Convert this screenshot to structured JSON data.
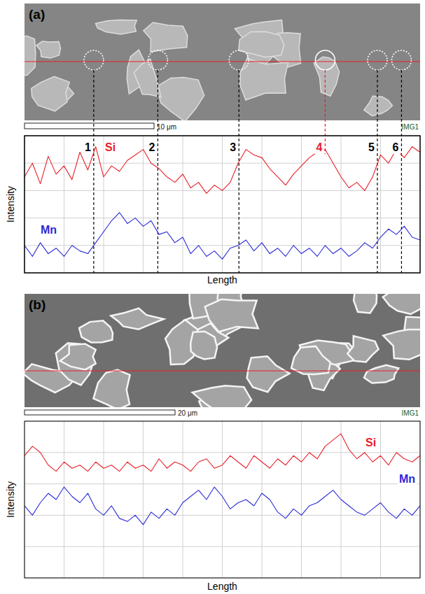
{
  "chart_data": [
    {
      "type": "line",
      "title": "(a)",
      "scale_bar": "10 μm",
      "image_tag": "IMG1",
      "x_label": "Length",
      "y_label": "Intensity",
      "xlim": [
        0,
        100
      ],
      "ylim": [
        0,
        100
      ],
      "xticks": [
        0,
        10,
        20,
        30,
        40,
        50,
        60,
        70,
        80,
        90,
        100
      ],
      "yticks": [
        0,
        20,
        40,
        60,
        80,
        100
      ],
      "grid": true,
      "tick_labels": false,
      "x": [
        0,
        2,
        4,
        6,
        8,
        10,
        12,
        14,
        16,
        18,
        20,
        22,
        24,
        26,
        28,
        30,
        32,
        34,
        36,
        38,
        40,
        42,
        44,
        46,
        48,
        50,
        52,
        54,
        56,
        58,
        60,
        62,
        64,
        66,
        68,
        70,
        72,
        74,
        76,
        78,
        80,
        82,
        84,
        86,
        88,
        90,
        92,
        94,
        96,
        98,
        100
      ],
      "series": [
        {
          "name": "Si",
          "color": "#e8202a",
          "values": [
            70,
            80,
            65,
            85,
            72,
            78,
            68,
            88,
            75,
            92,
            70,
            78,
            74,
            82,
            86,
            90,
            80,
            76,
            70,
            66,
            72,
            62,
            66,
            58,
            64,
            60,
            66,
            80,
            90,
            86,
            84,
            76,
            70,
            64,
            72,
            78,
            84,
            88,
            90,
            80,
            70,
            62,
            66,
            60,
            70,
            86,
            80,
            90,
            84,
            92,
            88
          ]
        },
        {
          "name": "Mn",
          "color": "#2a2ad8",
          "values": [
            20,
            12,
            22,
            14,
            18,
            12,
            20,
            16,
            14,
            22,
            30,
            38,
            44,
            36,
            40,
            34,
            38,
            28,
            30,
            22,
            26,
            14,
            20,
            12,
            16,
            10,
            18,
            20,
            24,
            16,
            22,
            14,
            18,
            12,
            20,
            14,
            18,
            12,
            20,
            14,
            18,
            12,
            16,
            22,
            18,
            26,
            32,
            28,
            34,
            26,
            24
          ]
        }
      ],
      "annotations": [
        {
          "text": "1",
          "x": 17.5,
          "color": "#000000"
        },
        {
          "text": "2",
          "x": 33.7,
          "color": "#000000"
        },
        {
          "text": "3",
          "x": 54.2,
          "color": "#000000"
        },
        {
          "text": "4",
          "x": 76,
          "color": "#e8202a"
        },
        {
          "text": "5",
          "x": 89.2,
          "color": "#000000"
        },
        {
          "text": "6",
          "x": 95.3,
          "color": "#000000"
        }
      ]
    },
    {
      "type": "line",
      "title": "(b)",
      "scale_bar": "20 μm",
      "image_tag": "IMG1",
      "x_label": "Length",
      "y_label": "Intensity",
      "xlim": [
        0,
        100
      ],
      "ylim": [
        0,
        100
      ],
      "xticks": [
        0,
        10,
        20,
        30,
        40,
        50,
        60,
        70,
        80,
        90,
        100
      ],
      "yticks": [
        0,
        20,
        40,
        60,
        80,
        100
      ],
      "grid": true,
      "tick_labels": false,
      "x": [
        0,
        2,
        4,
        6,
        8,
        10,
        12,
        14,
        16,
        18,
        20,
        22,
        24,
        26,
        28,
        30,
        32,
        34,
        36,
        38,
        40,
        42,
        44,
        46,
        48,
        50,
        52,
        54,
        56,
        58,
        60,
        62,
        64,
        66,
        68,
        70,
        72,
        74,
        76,
        78,
        80,
        82,
        84,
        86,
        88,
        90,
        92,
        94,
        96,
        98,
        100
      ],
      "series": [
        {
          "name": "Si",
          "color": "#e8202a",
          "values": [
            78,
            84,
            80,
            72,
            68,
            74,
            70,
            72,
            68,
            74,
            70,
            72,
            68,
            74,
            70,
            72,
            68,
            76,
            70,
            74,
            72,
            68,
            74,
            76,
            70,
            72,
            78,
            74,
            70,
            78,
            74,
            70,
            76,
            72,
            78,
            74,
            80,
            76,
            84,
            88,
            92,
            82,
            76,
            80,
            74,
            78,
            72,
            80,
            76,
            74,
            78
          ]
        },
        {
          "name": "Mn",
          "color": "#2a2ad8",
          "values": [
            46,
            40,
            48,
            54,
            50,
            58,
            52,
            48,
            54,
            44,
            40,
            46,
            38,
            36,
            40,
            34,
            42,
            38,
            44,
            40,
            48,
            52,
            56,
            50,
            58,
            52,
            44,
            48,
            50,
            46,
            54,
            50,
            42,
            38,
            44,
            40,
            46,
            48,
            52,
            56,
            50,
            46,
            42,
            40,
            44,
            48,
            42,
            38,
            44,
            40,
            46
          ]
        }
      ]
    }
  ]
}
